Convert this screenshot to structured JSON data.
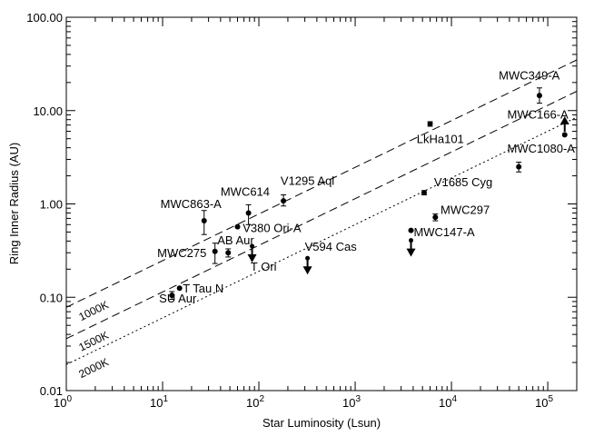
{
  "chart_data": {
    "type": "scatter",
    "title": "",
    "xlabel": "Star Luminosity (Lsun)",
    "ylabel": "Ring Inner Radius (AU)",
    "xscale": "log",
    "yscale": "log",
    "xlim": [
      1,
      200000
    ],
    "ylim": [
      0.01,
      100
    ],
    "x_ticks": [
      1,
      10,
      100,
      1000,
      10000,
      100000
    ],
    "x_tick_labels": [
      {
        "base": "10",
        "exp": "0"
      },
      {
        "base": "10",
        "exp": "1"
      },
      {
        "base": "10",
        "exp": "2"
      },
      {
        "base": "10",
        "exp": "3"
      },
      {
        "base": "10",
        "exp": "4"
      },
      {
        "base": "10",
        "exp": "5"
      }
    ],
    "y_ticks": [
      0.01,
      0.1,
      1,
      10,
      100
    ],
    "y_tick_labels": [
      "0.01",
      "0.10",
      "1.00",
      "10.00",
      "100.00"
    ],
    "grid": false,
    "lines": [
      {
        "label": "1000K",
        "style": "dashed",
        "y_at_x1": 0.078,
        "slope": 0.5
      },
      {
        "label": "1500K",
        "style": "dashed",
        "y_at_x1": 0.036,
        "slope": 0.5
      },
      {
        "label": "2000K",
        "style": "dotted",
        "y_at_x1": 0.019,
        "slope": 0.5
      }
    ],
    "points": [
      {
        "name": "SU Aur",
        "x": 12.5,
        "y": 0.105,
        "yerr": [
          0.095,
          0.115
        ],
        "upper_limit": false
      },
      {
        "name": "T Tau N",
        "x": 15,
        "y": 0.125,
        "yerr": null,
        "upper_limit": false
      },
      {
        "name": "MWC863-A",
        "x": 27,
        "y": 0.66,
        "yerr": [
          0.47,
          0.85
        ],
        "upper_limit": false
      },
      {
        "name": "MWC275",
        "x": 35,
        "y": 0.31,
        "yerr": [
          0.23,
          0.38
        ],
        "upper_limit": false
      },
      {
        "name": "AB Aur",
        "x": 48,
        "y": 0.3,
        "yerr": [
          0.27,
          0.33
        ],
        "upper_limit": false
      },
      {
        "name": "V380 Ori-A",
        "x": 60,
        "y": 0.57,
        "yerr": null,
        "upper_limit": false
      },
      {
        "name": "MWC614",
        "x": 78,
        "y": 0.8,
        "yerr": [
          0.6,
          0.98
        ],
        "upper_limit": false
      },
      {
        "name": "T Ori",
        "x": 85,
        "y": 0.33,
        "yerr": null,
        "upper_limit": true
      },
      {
        "name": "V1295 Aql",
        "x": 180,
        "y": 1.08,
        "yerr": [
          0.95,
          1.25
        ],
        "upper_limit": false
      },
      {
        "name": "V594 Cas",
        "x": 320,
        "y": 0.245,
        "yerr": null,
        "upper_limit": true
      },
      {
        "name": "MWC147-A",
        "x": 3800,
        "y": 0.52,
        "yerr": null,
        "upper_limit": false
      },
      {
        "name": "MWC147-A",
        "x": 3800,
        "y": 0.38,
        "yerr": null,
        "upper_limit": true
      },
      {
        "name": "MWC297",
        "x": 6800,
        "y": 0.72,
        "yerr": [
          0.66,
          0.78
        ],
        "upper_limit": false
      },
      {
        "name": "V1685 Cyg",
        "x": 5200,
        "y": 1.32,
        "yerr": [
          1.25,
          1.39
        ],
        "upper_limit": false
      },
      {
        "name": "LkHa101",
        "x": 6000,
        "y": 7.2,
        "yerr": [
          6.8,
          7.6
        ],
        "upper_limit": false
      },
      {
        "name": "MWC1080-A",
        "x": 50000,
        "y": 2.5,
        "yerr": [
          2.2,
          2.8
        ],
        "upper_limit": false
      },
      {
        "name": "MWC349-A",
        "x": 82000,
        "y": 14.5,
        "yerr": [
          12.0,
          17.5
        ],
        "upper_limit": false
      },
      {
        "name": "MWC166-A",
        "x": 150000,
        "y": 6.5,
        "yerr": null,
        "upper_limit": false,
        "lower_limit": true
      },
      {
        "name": "MWC166-A",
        "x": 150000,
        "y": 5.5,
        "yerr": null,
        "upper_limit": false
      }
    ],
    "point_labels": [
      {
        "text": "SU Aur",
        "x": 9.2,
        "y": 0.088
      },
      {
        "text": "T Tau N",
        "x": 16.2,
        "y": 0.112
      },
      {
        "text": "MWC863-A",
        "x": 9.5,
        "y": 0.9
      },
      {
        "text": "MWC275",
        "x": 8.8,
        "y": 0.27
      },
      {
        "text": "AB Aur",
        "x": 37,
        "y": 0.37
      },
      {
        "text": "V380 Ori-A",
        "x": 68,
        "y": 0.5
      },
      {
        "text": "MWC614",
        "x": 40,
        "y": 1.22
      },
      {
        "text": "T Ori",
        "x": 82,
        "y": 0.193
      },
      {
        "text": "V1295 Aql",
        "x": 168,
        "y": 1.6
      },
      {
        "text": "V594 Cas",
        "x": 300,
        "y": 0.315
      },
      {
        "text": "MWC147-A",
        "x": 4050,
        "y": 0.45
      },
      {
        "text": "MWC297",
        "x": 7700,
        "y": 0.78
      },
      {
        "text": "V1685 Cyg",
        "x": 6600,
        "y": 1.55
      },
      {
        "text": "LkHa101",
        "x": 4350,
        "y": 4.5
      },
      {
        "text": "MWC1080-A",
        "x": 38000,
        "y": 3.55
      },
      {
        "text": "MWC349-A",
        "x": 31000,
        "y": 21.5
      },
      {
        "text": "MWC166-A",
        "x": 38000,
        "y": 8.2
      }
    ]
  }
}
